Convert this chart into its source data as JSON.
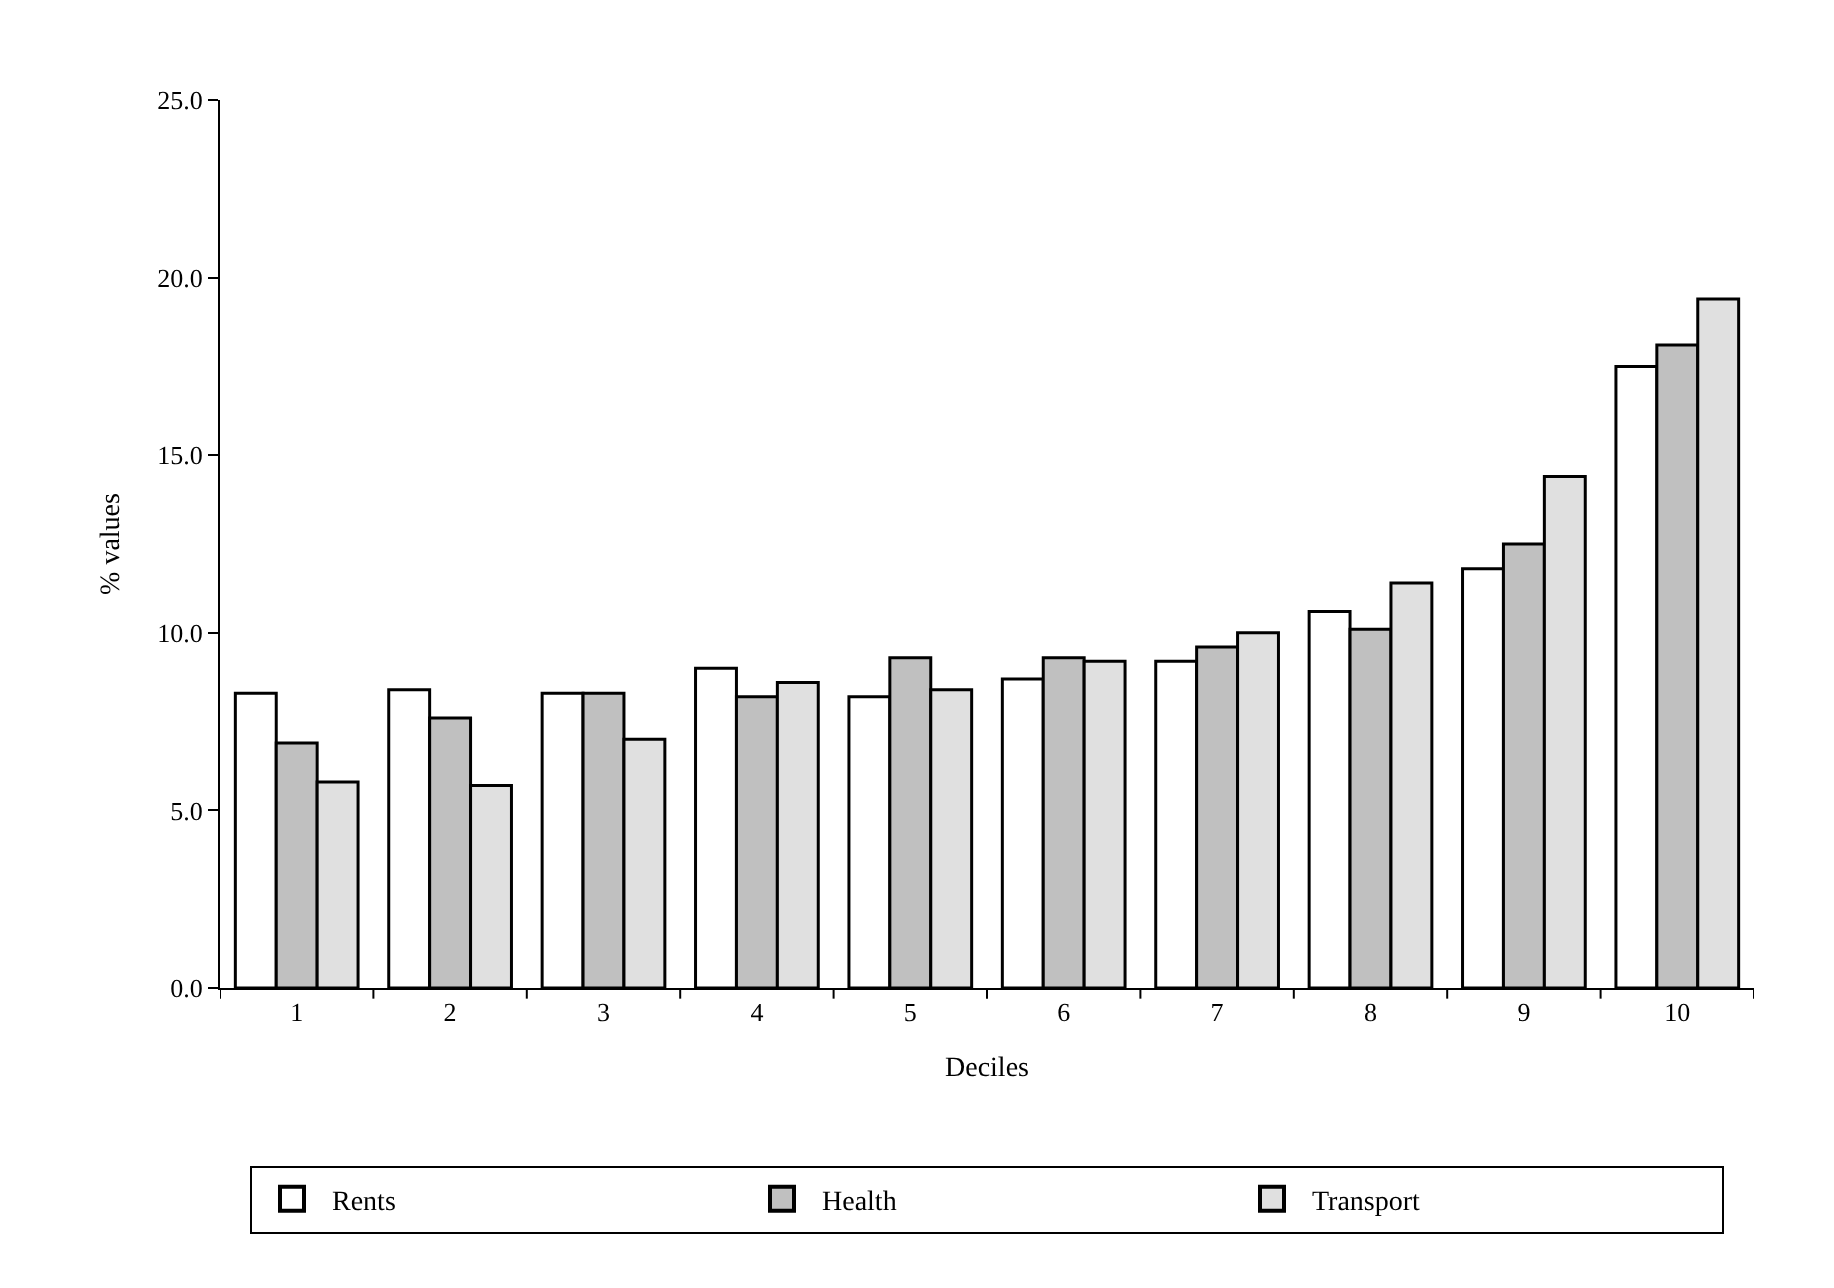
{
  "chart_data": {
    "type": "bar",
    "xlabel": "Deciles",
    "ylabel": "% values",
    "categories": [
      "1",
      "2",
      "3",
      "4",
      "5",
      "6",
      "7",
      "8",
      "9",
      "10"
    ],
    "series": [
      {
        "name": "Rents",
        "color": "#ffffff",
        "values": [
          8.3,
          8.4,
          8.3,
          9.0,
          8.2,
          8.7,
          9.2,
          10.6,
          11.8,
          17.5
        ]
      },
      {
        "name": "Health",
        "color": "#c0c0c0",
        "values": [
          6.9,
          7.6,
          8.3,
          8.2,
          9.3,
          9.3,
          9.6,
          10.1,
          12.5,
          18.1
        ]
      },
      {
        "name": "Transport",
        "color": "#e0e0e0",
        "values": [
          5.8,
          5.7,
          7.0,
          8.6,
          8.4,
          9.2,
          10.0,
          11.4,
          14.4,
          19.4
        ]
      }
    ],
    "ylim": [
      0,
      25
    ],
    "yticks": [
      {
        "value": 0,
        "label": "0.0"
      },
      {
        "value": 5,
        "label": "5.0"
      },
      {
        "value": 10,
        "label": "10.0"
      },
      {
        "value": 15,
        "label": "15.0"
      },
      {
        "value": 20,
        "label": "20.0"
      },
      {
        "value": 25,
        "label": "25.0"
      }
    ],
    "legend": "bottom"
  }
}
